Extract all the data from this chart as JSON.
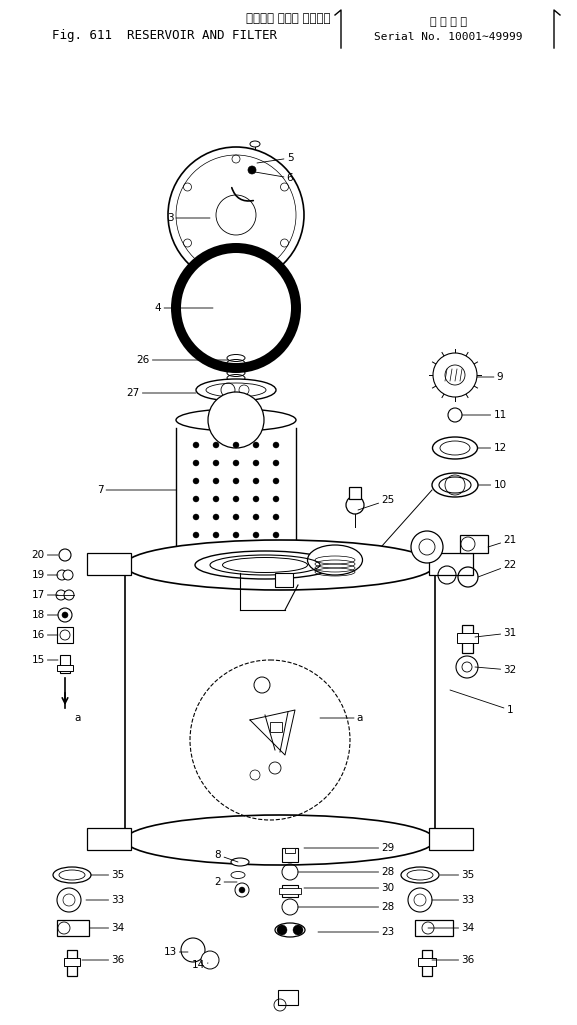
{
  "title_jp": "リザーバ および フィルタ",
  "title_en": "RESERVOIR AND FILTER",
  "fig_num": "Fig. 611",
  "serial_jp": "適 用 号 機",
  "serial_en": "Serial No. 10001∼49999",
  "bg_color": "#ffffff",
  "lc": "#000000"
}
